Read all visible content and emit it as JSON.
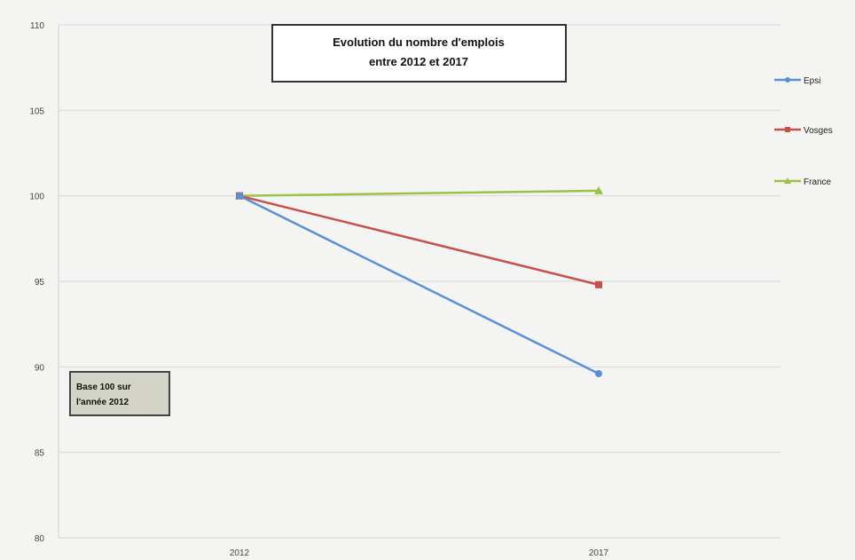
{
  "chart_data": {
    "type": "line",
    "title_lines": [
      "Evolution du nombre d'emplois",
      "entre 2012 et 2017"
    ],
    "categories": [
      "2012",
      "2017"
    ],
    "ylim": [
      80,
      110
    ],
    "yticks": [
      80,
      85,
      90,
      95,
      100,
      105,
      110
    ],
    "grid": true,
    "legend_position": "right",
    "series": [
      {
        "name": "Epsi",
        "values": [
          100,
          89.6
        ],
        "color": "#5b8fd6"
      },
      {
        "name": "Vosges",
        "values": [
          100,
          94.8
        ],
        "color": "#c9504a"
      },
      {
        "name": "France",
        "values": [
          100,
          100.3
        ],
        "color": "#9cc244"
      }
    ],
    "annotation_lines": [
      "Base 100 sur",
      "l'année 2012"
    ]
  }
}
